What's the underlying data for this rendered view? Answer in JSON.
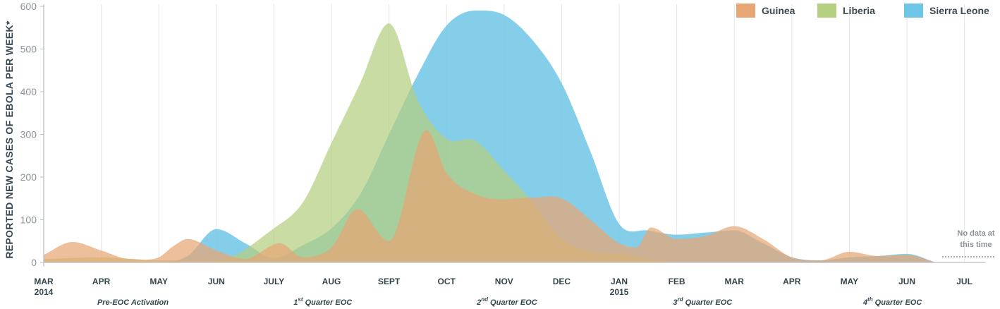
{
  "chart_data": {
    "type": "area",
    "ylabel": "REPORTED NEW CASES OF EBOLA PER WEEK*",
    "xlabel": "",
    "title": "",
    "ylim": [
      0,
      600
    ],
    "yticks": [
      0,
      100,
      200,
      300,
      400,
      500,
      600
    ],
    "grid": "vertical",
    "legend_position": "top-right",
    "x_labels": [
      "MAR",
      "APR",
      "MAY",
      "JUN",
      "JULY",
      "AUG",
      "SEPT",
      "OCT",
      "NOV",
      "DEC",
      "JAN",
      "FEB",
      "MAR",
      "APR",
      "MAY",
      "JUN",
      "JUL"
    ],
    "year_labels": [
      {
        "x": 0,
        "label": "2014"
      },
      {
        "x": 10,
        "label": "2015"
      }
    ],
    "phases": [
      {
        "x": 1.55,
        "label": "Pre-EOC Activation"
      },
      {
        "x": 4.85,
        "label": "1st Quarter EOC"
      },
      {
        "x": 8.05,
        "label": "2nd Quarter EOC"
      },
      {
        "x": 11.45,
        "label": "3rd Quarter EOC"
      },
      {
        "x": 14.75,
        "label": "4th Quarter EOC"
      }
    ],
    "no_data_note": [
      "No data at",
      "this time"
    ],
    "series": [
      {
        "name": "Guinea",
        "color": "#e8a675",
        "x": [
          0,
          0.5,
          1.0,
          1.5,
          2.0,
          2.25,
          2.5,
          3.0,
          3.5,
          4.1,
          4.5,
          5.0,
          5.45,
          6.0,
          6.65,
          7.0,
          7.5,
          8.0,
          8.5,
          9.0,
          9.5,
          10.0,
          10.3,
          10.55,
          11.0,
          11.5,
          12.0,
          12.5,
          13.0,
          13.5,
          14.0,
          14.5,
          15.0,
          15.5
        ],
        "y": [
          18,
          48,
          28,
          8,
          12,
          38,
          55,
          28,
          8,
          45,
          12,
          35,
          125,
          50,
          310,
          210,
          160,
          148,
          152,
          150,
          100,
          45,
          35,
          82,
          55,
          62,
          85,
          55,
          12,
          5,
          25,
          15,
          18,
          0
        ]
      },
      {
        "name": "Liberia",
        "color": "#b4cf7f",
        "x": [
          0,
          1.0,
          2.0,
          2.6,
          3.0,
          4.0,
          4.5,
          5.0,
          5.5,
          6.0,
          6.5,
          7.0,
          7.5,
          8.0,
          8.5,
          9.0,
          9.5,
          10.0,
          10.5,
          11.0
        ],
        "y": [
          8,
          12,
          5,
          5,
          5,
          80,
          140,
          280,
          420,
          560,
          380,
          290,
          285,
          215,
          140,
          55,
          25,
          20,
          8,
          0
        ]
      },
      {
        "name": "Sierra Leone",
        "color": "#6ec6e6",
        "x": [
          0,
          1.0,
          2.0,
          2.5,
          3.0,
          3.5,
          4.0,
          4.5,
          5.0,
          5.5,
          6.0,
          6.5,
          7.0,
          7.5,
          8.0,
          8.5,
          9.0,
          9.5,
          10.0,
          10.5,
          11.0,
          11.5,
          12.0,
          12.5,
          13.0,
          13.5,
          14.0,
          14.5,
          15.0,
          15.5
        ],
        "y": [
          0,
          0,
          0,
          15,
          78,
          45,
          10,
          40,
          80,
          160,
          300,
          440,
          555,
          590,
          580,
          520,
          420,
          260,
          90,
          75,
          65,
          70,
          75,
          45,
          12,
          5,
          12,
          15,
          20,
          0
        ]
      }
    ]
  }
}
